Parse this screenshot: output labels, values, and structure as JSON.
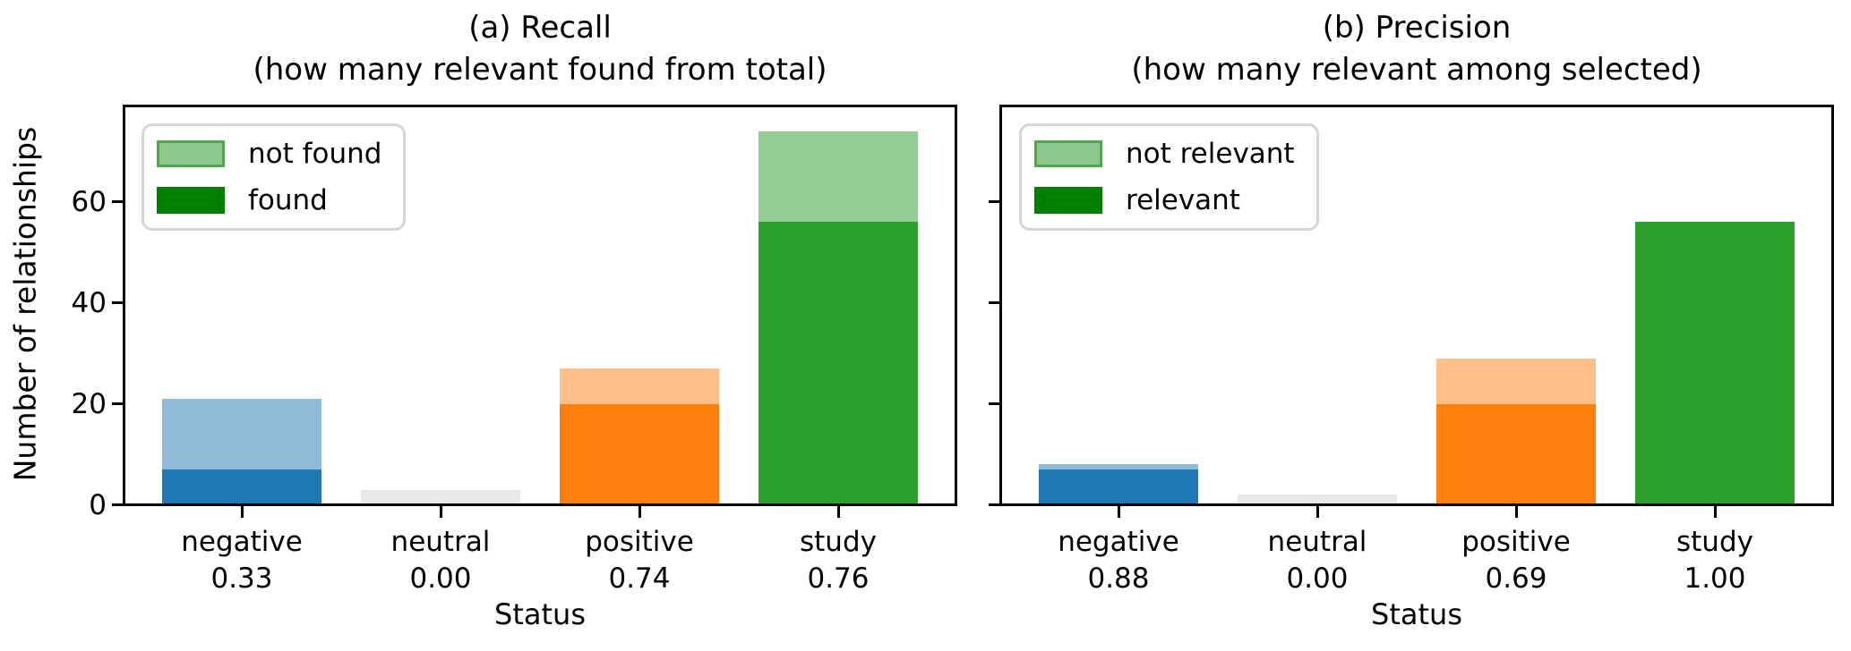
{
  "figure": {
    "background": "#ffffff",
    "text_color": "#000000"
  },
  "chart_data": [
    {
      "type": "bar",
      "stacked": true,
      "title": "(a) Recall",
      "subtitle": "(how many relevant found from total)",
      "xlabel": "Status",
      "ylabel": "Number of relationships",
      "categories": [
        "negative",
        "neutral",
        "positive",
        "study"
      ],
      "category_ratio_labels": [
        "0.33",
        "0.00",
        "0.74",
        "0.76"
      ],
      "series": [
        {
          "name": "found",
          "values": [
            7,
            0,
            20,
            56
          ]
        },
        {
          "name": "not found",
          "values": [
            14,
            3,
            7,
            18
          ]
        }
      ],
      "totals": [
        21,
        3,
        27,
        74
      ],
      "yticks": [
        0,
        20,
        40,
        60
      ],
      "ylim": [
        0,
        78.7
      ],
      "show_ytick_labels": true,
      "grid": false,
      "legend": {
        "position": "upper left",
        "entries": [
          "not found",
          "found"
        ]
      },
      "bar_colors": {
        "dark": [
          "#1f77b4",
          "#d3d3d3",
          "#ff7f0e",
          "#2ca02c"
        ],
        "light": [
          "#8fbbd9",
          "#e9e9e9",
          "#ffbf86",
          "#95cb95"
        ]
      },
      "legend_colors": {
        "light_fill": "#8cc88c",
        "light_edge": "#4fa64f",
        "dark_fill": "#008000",
        "box_edge": "#d5d5d5"
      }
    },
    {
      "type": "bar",
      "stacked": true,
      "title": "(b) Precision",
      "subtitle": "(how many relevant among selected)",
      "xlabel": "Status",
      "categories": [
        "negative",
        "neutral",
        "positive",
        "study"
      ],
      "category_ratio_labels": [
        "0.88",
        "0.00",
        "0.69",
        "1.00"
      ],
      "series": [
        {
          "name": "relevant",
          "values": [
            7,
            0,
            20,
            56
          ]
        },
        {
          "name": "not relevant",
          "values": [
            1,
            2,
            9,
            0
          ]
        }
      ],
      "totals": [
        8,
        2,
        29,
        56
      ],
      "yticks": [
        0,
        20,
        40,
        60
      ],
      "ylim": [
        0,
        78.7
      ],
      "show_ytick_labels": false,
      "grid": false,
      "legend": {
        "position": "upper left",
        "entries": [
          "not relevant",
          "relevant"
        ]
      },
      "bar_colors": {
        "dark": [
          "#1f77b4",
          "#d3d3d3",
          "#ff7f0e",
          "#2ca02c"
        ],
        "light": [
          "#8fbbd9",
          "#e9e9e9",
          "#ffbf86",
          "#95cb95"
        ]
      },
      "legend_colors": {
        "light_fill": "#8cc88c",
        "light_edge": "#4fa64f",
        "dark_fill": "#008000",
        "box_edge": "#d5d5d5"
      }
    }
  ]
}
